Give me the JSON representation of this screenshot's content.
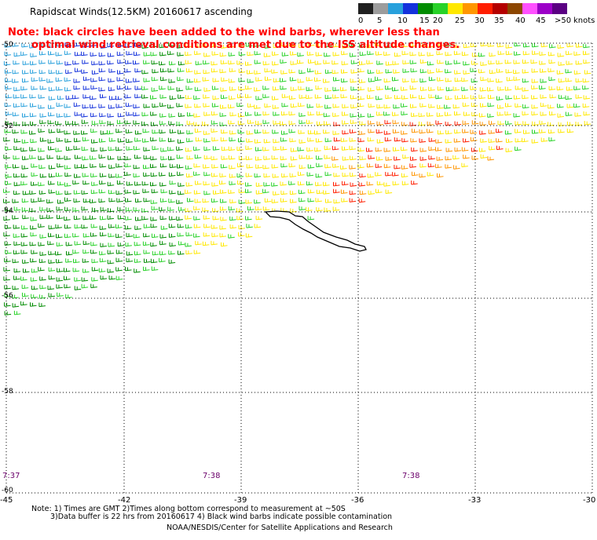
{
  "header": {
    "title": "Rapidscat Winds(12.5KM) 20160617 ascending",
    "note_line1": "Note: black circles have been added to the wind barbs, wherever less than",
    "note_line2": "optimal wind retrieval conditions are met due to the ISS altitude changes."
  },
  "legend": {
    "unit": "knots",
    "labels": [
      "0",
      "5",
      "10",
      "15",
      "20",
      "25",
      "30",
      "35",
      "40",
      "45",
      ">50"
    ],
    "colors": [
      "#202020",
      "#9c9c9c",
      "#28a0dc",
      "#1432dc",
      "#008c00",
      "#28d228",
      "#ffe800",
      "#ff9600",
      "#ff1e00",
      "#b40000",
      "#8c4600",
      "#ff50ff",
      "#9c00c8",
      "#5a0082"
    ]
  },
  "axes": {
    "lat_labels": [
      "-50",
      "-52",
      "-54",
      "-56",
      "-58",
      "-60"
    ],
    "lon_labels": [
      "-45",
      "-42",
      "-39",
      "-36",
      "-33",
      "-30"
    ]
  },
  "times": [
    "7:37",
    "7:38",
    "7:38"
  ],
  "footer": {
    "line1": "Note: 1) Times are GMT 2)Times along bottom correspond to measurement at ~50S",
    "line2": "3)Data buffer is 22 hrs from 20160617 4) Black wind barbs indicate possible contamination",
    "line3": "NOAA/NESDIS/Center for Satellite Applications and Research"
  }
}
